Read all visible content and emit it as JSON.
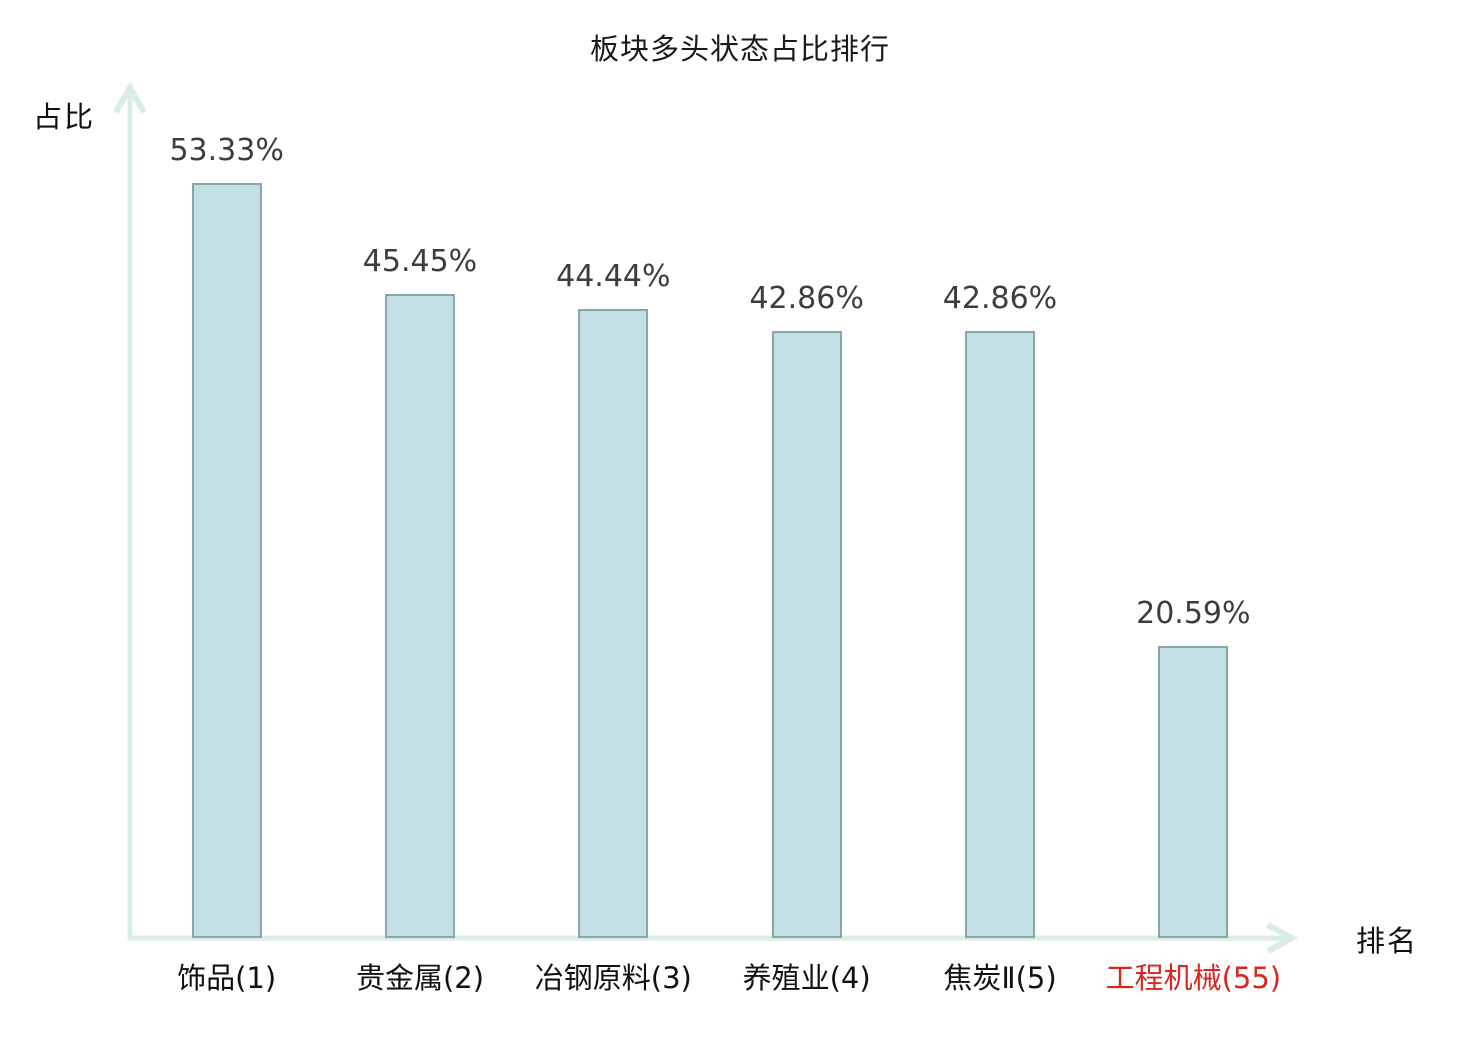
{
  "title": "板块多头状态占比排行",
  "axes": {
    "y_label": "占比",
    "x_label": "排名"
  },
  "colors": {
    "background": "#ffffff",
    "bar_fill": "#c2e0e3",
    "bar_border": "#88a6ab",
    "axis": "#daece8",
    "title": "#1a1a1a",
    "value_label": "#3d3d3d",
    "category_label": "#111111",
    "category_highlight": "#d9261f"
  },
  "chart_data": {
    "type": "bar",
    "title": "板块多头状态占比排行",
    "xlabel": "排名",
    "ylabel": "占比",
    "categories": [
      "饰品(1)",
      "贵金属(2)",
      "冶钢原料(3)",
      "养殖业(4)",
      "焦炭Ⅱ(5)",
      "工程机械(55)"
    ],
    "values": [
      53.33,
      45.45,
      44.44,
      42.86,
      42.86,
      20.59
    ],
    "value_labels": [
      "53.33%",
      "45.45%",
      "44.44%",
      "42.86%",
      "42.86%",
      "20.59%"
    ],
    "highlight_index": 5,
    "ylim": [
      0,
      60
    ],
    "grid": false,
    "legend_position": "none",
    "bar_unit": "percent"
  }
}
